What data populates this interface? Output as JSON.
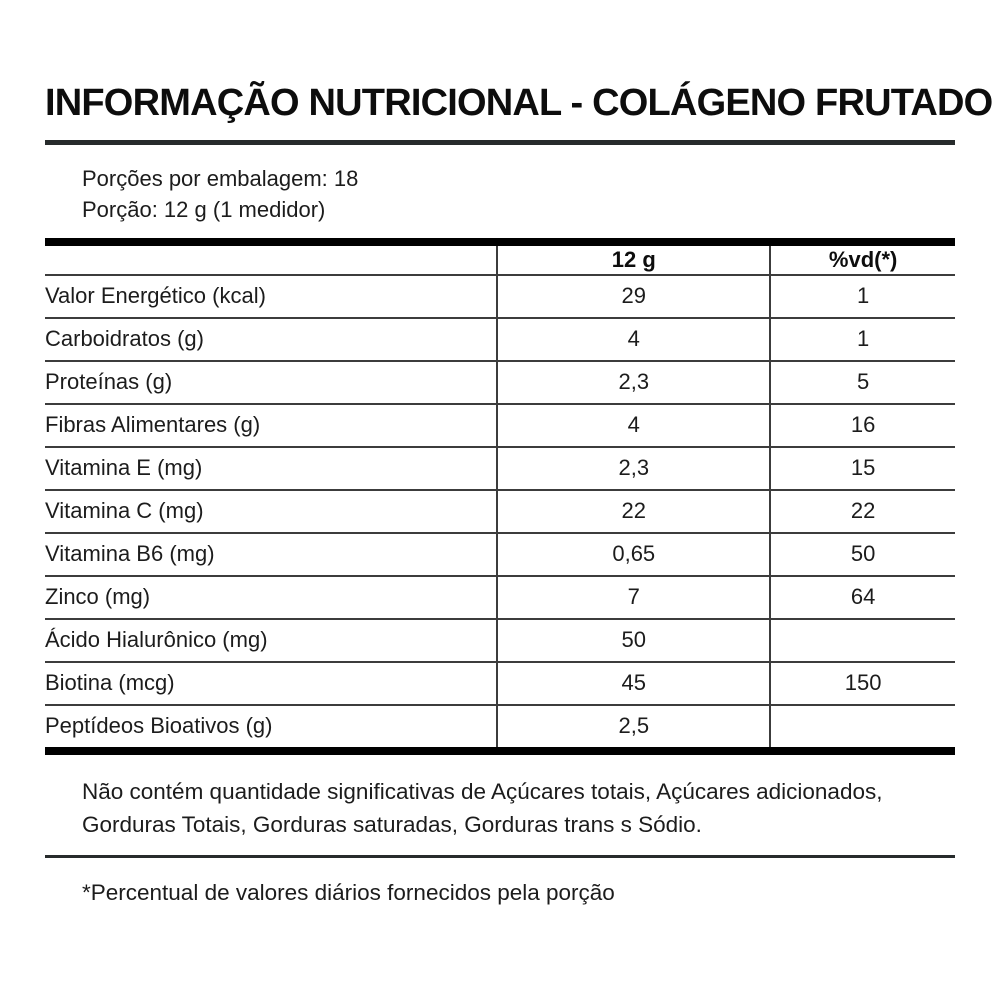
{
  "title": "INFORMAÇÃO NUTRICIONAL - COLÁGENO FRUTADO",
  "serving": {
    "servings_per_package": "Porções por embalagem: 18",
    "serving_size": "Porção: 12 g (1 medidor)"
  },
  "table": {
    "header": {
      "nutrient": "",
      "amount": "12 g",
      "daily_value": "%vd(*)"
    },
    "rows": [
      {
        "label": "Valor Energético (kcal)",
        "amount": "29",
        "dv": "1"
      },
      {
        "label": "Carboidratos (g)",
        "amount": "4",
        "dv": "1"
      },
      {
        "label": "Proteínas (g)",
        "amount": "2,3",
        "dv": "5"
      },
      {
        "label": "Fibras Alimentares (g)",
        "amount": "4",
        "dv": "16"
      },
      {
        "label": "Vitamina E (mg)",
        "amount": "2,3",
        "dv": "15"
      },
      {
        "label": "Vitamina C (mg)",
        "amount": "22",
        "dv": "22"
      },
      {
        "label": "Vitamina B6 (mg)",
        "amount": "0,65",
        "dv": "50"
      },
      {
        "label": "Zinco (mg)",
        "amount": "7",
        "dv": "64"
      },
      {
        "label": "Ácido Hialurônico (mg)",
        "amount": "50",
        "dv": ""
      },
      {
        "label": "Biotina (mcg)",
        "amount": "45",
        "dv": "150"
      },
      {
        "label": "Peptídeos Bioativos (g)",
        "amount": "2,5",
        "dv": ""
      }
    ]
  },
  "footnotes": {
    "no_significant_amounts": "Não contém quantidade significativas de Açúcares totais, Açúcares adicionados, Gorduras Totais, Gorduras saturadas, Gorduras trans s Sódio.",
    "daily_value_note": "*Percentual de valores diários fornecidos pela porção"
  },
  "colors": {
    "text": "#1a1a1a",
    "rule_heavy": "#000000",
    "rule_medium": "#272b2c",
    "rule_light": "#3c3c3c"
  }
}
